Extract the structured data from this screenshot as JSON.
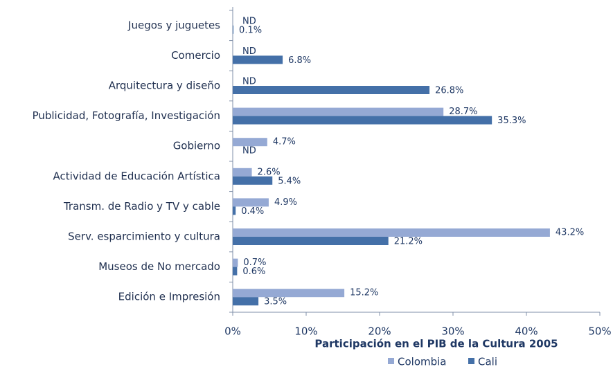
{
  "chart_data": {
    "type": "barh",
    "xlabel": "Participación en el PIB de la Cultura 2005",
    "categories": [
      "Juegos y juguetes",
      "Comercio",
      "Arquitectura y diseño",
      "Publicidad, Fotografía, Investigación",
      "Gobierno",
      "Actividad de Educación Artística",
      "Transm. de Radio y TV y cable",
      "Serv. esparcimiento y cultura",
      "Museos de No mercado",
      "Edición e Impresión"
    ],
    "series": [
      {
        "name": "Colombia",
        "color": "#95a9d4",
        "values": [
          null,
          null,
          null,
          28.7,
          4.7,
          2.6,
          4.9,
          43.2,
          0.7,
          15.2
        ],
        "value_labels": [
          "ND",
          "ND",
          "ND",
          "28.7%",
          "4.7%",
          "2.6%",
          "4.9%",
          "43.2%",
          "0.7%",
          "15.2%"
        ]
      },
      {
        "name": "Cali",
        "color": "#4470a8",
        "values": [
          0.1,
          6.8,
          26.8,
          35.3,
          null,
          5.4,
          0.4,
          21.2,
          0.6,
          3.5
        ],
        "value_labels": [
          "0.1%",
          "6.8%",
          "26.8%",
          "35.3%",
          "ND",
          "5.4%",
          "0.4%",
          "21.2%",
          "0.6%",
          "3.5%"
        ]
      }
    ],
    "xlim": [
      0,
      50
    ],
    "xticks": [
      {
        "value": 0,
        "label": "0%"
      },
      {
        "value": 10,
        "label": "10%"
      },
      {
        "value": 20,
        "label": "20%"
      },
      {
        "value": 30,
        "label": "30%"
      },
      {
        "value": 40,
        "label": "40%"
      },
      {
        "value": 50,
        "label": "50%"
      }
    ],
    "grid": false,
    "legend": "bottom"
  }
}
